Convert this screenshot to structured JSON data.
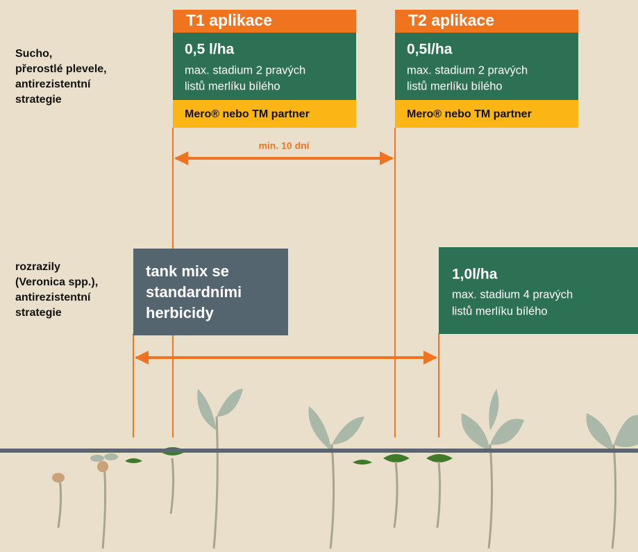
{
  "rows": [
    {
      "label_lines": [
        "Sucho,",
        "přerostlé plevele,",
        "antirezistentní",
        "strategie"
      ]
    },
    {
      "label_lines": [
        "rozrazily",
        "(Veronica spp.),",
        "antirezistentní",
        "strategie"
      ]
    }
  ],
  "applications": [
    {
      "title": "T1 aplikace",
      "rate": "0,5 l/ha",
      "detail_lines": [
        "max. stadium 2 pravých",
        "listů merlíku bílého"
      ],
      "partner": "Mero® nebo TM partner"
    },
    {
      "title": "T2 aplikace",
      "rate": "0,5l/ha",
      "detail_lines": [
        "max. stadium 2 pravých",
        "listů merlíku bílého"
      ],
      "partner": "Mero® nebo TM partner"
    }
  ],
  "interval_label": "min. 10 dní",
  "tank_mix_lines": [
    "tank mix se",
    "standardními",
    "herbicidy"
  ],
  "second_treatment": {
    "rate": "1,0l/ha",
    "detail_lines": [
      "max. stadium 4 pravých",
      "listů merlíku bílého"
    ]
  }
}
